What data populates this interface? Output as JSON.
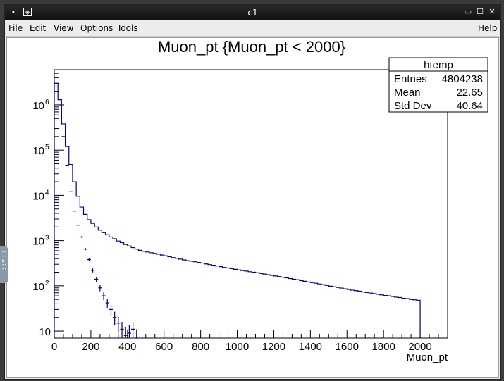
{
  "window": {
    "title": "c1",
    "menu": [
      "File",
      "Edit",
      "View",
      "Options",
      "Tools"
    ],
    "help": "Help",
    "buttons": {
      "minimize": "▭",
      "maximize": "☐",
      "close": "✕"
    }
  },
  "chart_data": {
    "type": "histogram",
    "title": "Muon_pt {Muon_pt < 2000}",
    "xlabel": "Muon_pt",
    "ylabel": "",
    "xlim": [
      0,
      2150
    ],
    "ylim": [
      7,
      6000000
    ],
    "log_y": true,
    "grid": false,
    "x_ticks": [
      0,
      200,
      400,
      600,
      800,
      1000,
      1200,
      1400,
      1600,
      1800,
      2000
    ],
    "y_ticks": [
      {
        "value": 10,
        "label": "10"
      },
      {
        "value": 100,
        "label": "10",
        "exp": "2"
      },
      {
        "value": 1000,
        "label": "10",
        "exp": "3"
      },
      {
        "value": 10000,
        "label": "10",
        "exp": "4"
      },
      {
        "value": 100000,
        "label": "10",
        "exp": "5"
      },
      {
        "value": 1000000,
        "label": "10",
        "exp": "6"
      }
    ],
    "stats": {
      "name": "htemp",
      "entries_label": "Entries",
      "entries": "4804238",
      "mean_label": "Mean",
      "mean": "22.65",
      "std_label": "Std Dev",
      "std": "40.64"
    },
    "bin_width": 20,
    "series": [
      {
        "kind": "step",
        "values": [
          3000000,
          1300000,
          380000,
          120000,
          48000,
          20000,
          9500,
          5500,
          3800,
          2900,
          2400,
          2000,
          1700,
          1500,
          1350,
          1200,
          1100,
          980,
          900,
          820,
          760,
          700,
          650,
          610,
          580,
          560,
          540,
          520,
          500,
          480,
          460,
          440,
          420,
          405,
          390,
          375,
          360,
          350,
          340,
          330,
          318,
          305,
          295,
          285,
          275,
          265,
          255,
          248,
          240,
          232,
          225,
          218,
          212,
          205,
          200,
          195,
          188,
          182,
          176,
          170,
          165,
          160,
          155,
          150,
          145,
          140,
          136,
          130,
          126,
          122,
          118,
          114,
          110,
          106,
          102,
          98,
          95,
          92,
          89,
          86,
          83,
          80,
          78,
          76,
          73,
          71,
          69,
          67,
          65,
          63,
          61,
          60,
          58,
          56,
          55,
          53,
          52,
          50,
          49,
          48
        ]
      },
      {
        "kind": "errors",
        "values": [
          2500000,
          1000000,
          200000,
          45000,
          12000,
          4500,
          2200,
          1200,
          650,
          380,
          220,
          140,
          90,
          60,
          42,
          30,
          20,
          15,
          11,
          8,
          9,
          11,
          7
        ]
      }
    ]
  }
}
